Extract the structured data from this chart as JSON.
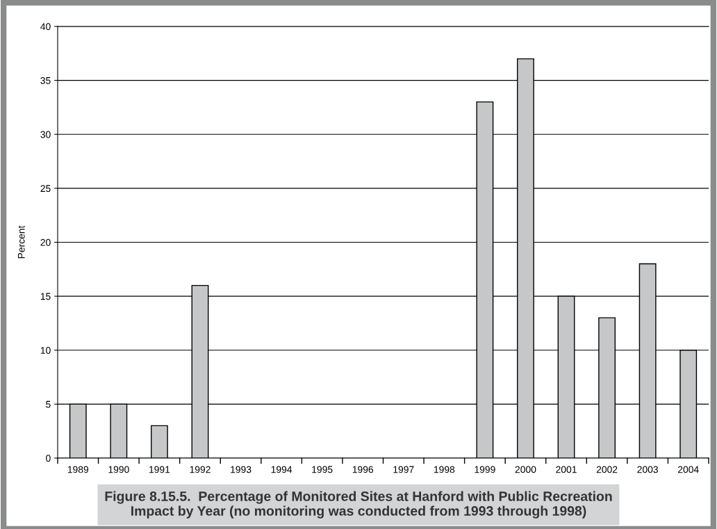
{
  "chart_data": {
    "type": "bar",
    "title": "Figure 8.15.5.  Percentage of Monitored Sites at Hanford with Public Recreation\nImpact by Year (no monitoring was conducted from 1993 through 1998)",
    "ylabel": "Percent",
    "categories": [
      "1989",
      "1990",
      "1991",
      "1992",
      "1993",
      "1994",
      "1995",
      "1996",
      "1997",
      "1998",
      "1999",
      "2000",
      "2001",
      "2002",
      "2003",
      "2004"
    ],
    "values": [
      5,
      5,
      3,
      16,
      null,
      null,
      null,
      null,
      null,
      null,
      33,
      37,
      15,
      13,
      18,
      10
    ],
    "color": "#c6c7c9",
    "ylim": [
      0,
      40
    ],
    "yticks": [
      0,
      5,
      10,
      15,
      20,
      25,
      30,
      35,
      40
    ],
    "grid": "y"
  }
}
